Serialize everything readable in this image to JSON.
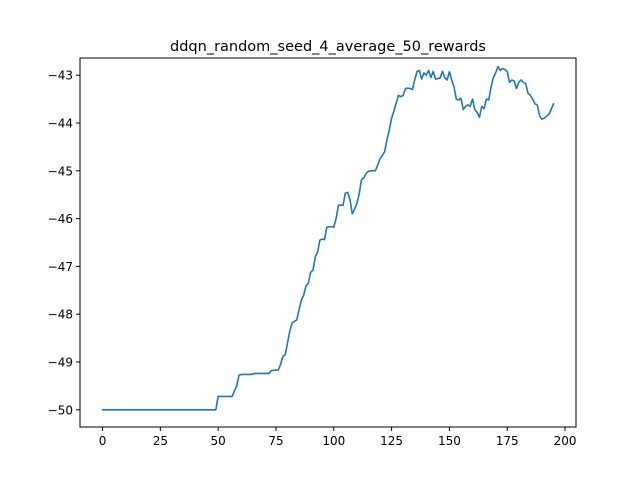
{
  "chart_data": {
    "type": "line",
    "title": "ddqn_random_seed_4_average_50_rewards",
    "xlabel": "",
    "ylabel": "",
    "xlim": [
      -9.75,
      204.75
    ],
    "ylim": [
      -50.36,
      -42.64
    ],
    "xticks": [
      0,
      25,
      50,
      75,
      100,
      125,
      150,
      175,
      200
    ],
    "yticks": [
      -50,
      -49,
      -48,
      -47,
      -46,
      -45,
      -44,
      -43
    ],
    "xtick_labels": [
      "0",
      "25",
      "50",
      "75",
      "100",
      "125",
      "150",
      "175",
      "200"
    ],
    "ytick_labels": [
      "−50",
      "−49",
      "−48",
      "−47",
      "−46",
      "−45",
      "−44",
      "−43"
    ],
    "grid": false,
    "legend": "none",
    "series": [
      {
        "color": "#1f77b4",
        "points": [
          [
            0,
            -50.0
          ],
          [
            5,
            -50.0
          ],
          [
            10,
            -50.0
          ],
          [
            15,
            -50.0
          ],
          [
            20,
            -50.0
          ],
          [
            25,
            -50.0
          ],
          [
            30,
            -50.0
          ],
          [
            35,
            -50.0
          ],
          [
            40,
            -50.0
          ],
          [
            45,
            -50.0
          ],
          [
            49,
            -50.0
          ],
          [
            50,
            -49.72
          ],
          [
            52,
            -49.72
          ],
          [
            54,
            -49.72
          ],
          [
            56,
            -49.72
          ],
          [
            58,
            -49.5
          ],
          [
            59,
            -49.28
          ],
          [
            60,
            -49.26
          ],
          [
            62,
            -49.26
          ],
          [
            64,
            -49.26
          ],
          [
            65,
            -49.25
          ],
          [
            66,
            -49.24
          ],
          [
            68,
            -49.24
          ],
          [
            70,
            -49.24
          ],
          [
            72,
            -49.24
          ],
          [
            73,
            -49.18
          ],
          [
            75,
            -49.17
          ],
          [
            76,
            -49.17
          ],
          [
            77,
            -49.05
          ],
          [
            78,
            -48.88
          ],
          [
            79,
            -48.85
          ],
          [
            80,
            -48.6
          ],
          [
            81,
            -48.35
          ],
          [
            82,
            -48.18
          ],
          [
            83,
            -48.15
          ],
          [
            84,
            -48.12
          ],
          [
            85,
            -47.9
          ],
          [
            86,
            -47.7
          ],
          [
            87,
            -47.6
          ],
          [
            88,
            -47.4
          ],
          [
            89,
            -47.35
          ],
          [
            90,
            -47.12
          ],
          [
            91,
            -47.08
          ],
          [
            92,
            -46.8
          ],
          [
            93,
            -46.7
          ],
          [
            94,
            -46.45
          ],
          [
            95,
            -46.43
          ],
          [
            96,
            -46.44
          ],
          [
            97,
            -46.18
          ],
          [
            98,
            -46.17
          ],
          [
            99,
            -46.17
          ],
          [
            100,
            -46.18
          ],
          [
            101,
            -46.0
          ],
          [
            102,
            -45.72
          ],
          [
            103,
            -45.72
          ],
          [
            104,
            -45.72
          ],
          [
            105,
            -45.47
          ],
          [
            106,
            -45.45
          ],
          [
            107,
            -45.6
          ],
          [
            108,
            -45.9
          ],
          [
            109,
            -45.8
          ],
          [
            110,
            -45.68
          ],
          [
            111,
            -45.48
          ],
          [
            112,
            -45.18
          ],
          [
            113,
            -45.15
          ],
          [
            114,
            -45.05
          ],
          [
            115,
            -45.01
          ],
          [
            116,
            -45.0
          ],
          [
            117,
            -45.0
          ],
          [
            118,
            -45.0
          ],
          [
            119,
            -44.88
          ],
          [
            120,
            -44.75
          ],
          [
            121,
            -44.68
          ],
          [
            122,
            -44.6
          ],
          [
            123,
            -44.35
          ],
          [
            124,
            -44.15
          ],
          [
            125,
            -43.9
          ],
          [
            126,
            -43.75
          ],
          [
            127,
            -43.58
          ],
          [
            128,
            -43.42
          ],
          [
            129,
            -43.45
          ],
          [
            130,
            -43.42
          ],
          [
            131,
            -43.28
          ],
          [
            132,
            -43.27
          ],
          [
            133,
            -43.28
          ],
          [
            134,
            -43.3
          ],
          [
            135,
            -43.1
          ],
          [
            136,
            -42.92
          ],
          [
            137,
            -42.9
          ],
          [
            138,
            -43.08
          ],
          [
            139,
            -42.95
          ],
          [
            140,
            -43.0
          ],
          [
            141,
            -42.9
          ],
          [
            142,
            -43.05
          ],
          [
            143,
            -42.92
          ],
          [
            144,
            -43.08
          ],
          [
            145,
            -43.07
          ],
          [
            146,
            -43.06
          ],
          [
            147,
            -42.92
          ],
          [
            148,
            -43.05
          ],
          [
            149,
            -43.1
          ],
          [
            150,
            -42.93
          ],
          [
            151,
            -43.1
          ],
          [
            152,
            -43.25
          ],
          [
            153,
            -43.5
          ],
          [
            154,
            -43.52
          ],
          [
            155,
            -43.48
          ],
          [
            156,
            -43.72
          ],
          [
            157,
            -43.65
          ],
          [
            158,
            -43.62
          ],
          [
            159,
            -43.65
          ],
          [
            160,
            -43.5
          ],
          [
            161,
            -43.72
          ],
          [
            162,
            -43.78
          ],
          [
            163,
            -43.88
          ],
          [
            164,
            -43.65
          ],
          [
            165,
            -43.7
          ],
          [
            166,
            -43.5
          ],
          [
            167,
            -43.52
          ],
          [
            168,
            -43.25
          ],
          [
            169,
            -43.05
          ],
          [
            170,
            -42.95
          ],
          [
            171,
            -42.82
          ],
          [
            172,
            -42.9
          ],
          [
            173,
            -42.86
          ],
          [
            174,
            -42.88
          ],
          [
            175,
            -42.92
          ],
          [
            176,
            -43.15
          ],
          [
            177,
            -43.1
          ],
          [
            178,
            -43.12
          ],
          [
            179,
            -43.28
          ],
          [
            180,
            -43.15
          ],
          [
            181,
            -43.1
          ],
          [
            182,
            -43.15
          ],
          [
            183,
            -43.18
          ],
          [
            184,
            -43.38
          ],
          [
            185,
            -43.42
          ],
          [
            186,
            -43.5
          ],
          [
            187,
            -43.6
          ],
          [
            188,
            -43.62
          ],
          [
            189,
            -43.85
          ],
          [
            190,
            -43.92
          ],
          [
            191,
            -43.9
          ],
          [
            192,
            -43.86
          ],
          [
            193,
            -43.82
          ],
          [
            194,
            -43.72
          ],
          [
            195,
            -43.6
          ]
        ]
      }
    ]
  }
}
